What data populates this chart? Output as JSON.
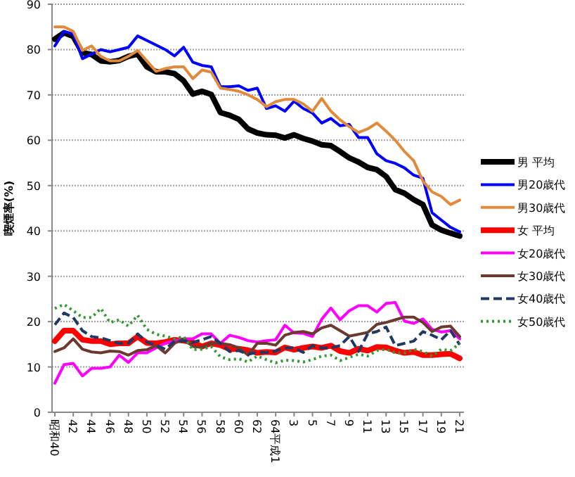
{
  "chart_data": {
    "type": "line",
    "ylabel": "喫煙率(%)",
    "categories": [
      "昭和40",
      null,
      "42",
      null,
      "44",
      null,
      "46",
      null,
      "48",
      null,
      "50",
      null,
      "52",
      null,
      "54",
      null,
      "56",
      null,
      "58",
      null,
      "60",
      null,
      "62",
      null,
      "64平成1",
      null,
      "3",
      null,
      "5",
      null,
      "7",
      null,
      "9",
      null,
      "11",
      null,
      "13",
      null,
      "15",
      null,
      "17",
      null,
      "19",
      null,
      "21"
    ],
    "ylim": [
      0,
      90
    ],
    "yticks": [
      0,
      10,
      20,
      30,
      40,
      50,
      60,
      70,
      80,
      90
    ],
    "grid": "y",
    "legend": "right",
    "marker": "none",
    "series": [
      {
        "name": "男  平均",
        "color": "#000000",
        "line_style": "solid",
        "values": [
          82.3,
          83.7,
          82.9,
          79.3,
          78.9,
          77.5,
          77.3,
          77.6,
          78.5,
          79.0,
          76.2,
          75.1,
          75.1,
          74.7,
          73.1,
          70.2,
          70.8,
          70.1,
          66.1,
          65.5,
          64.6,
          62.5,
          61.6,
          61.2,
          61.1,
          60.5,
          61.2,
          60.4,
          59.8,
          59.0,
          58.8,
          57.5,
          56.1,
          55.2,
          54.0,
          53.5,
          52.0,
          49.1,
          48.3,
          46.9,
          45.8,
          41.3,
          40.2,
          39.5,
          38.9
        ]
      },
      {
        "name": "男20歳代",
        "color": "#0000ff",
        "line_style": "solid",
        "values": [
          80.8,
          84,
          83.4,
          78,
          79,
          80,
          79.5,
          80,
          80.5,
          83,
          82,
          81,
          80,
          78.6,
          80.5,
          77.2,
          76.5,
          76.2,
          71.8,
          71.8,
          72,
          71,
          71.5,
          67,
          67.6,
          66.4,
          68.6,
          67,
          66,
          63.8,
          64.8,
          63.2,
          63.5,
          60.6,
          60.6,
          57,
          55.5,
          54.9,
          53.9,
          52.3,
          51.6,
          44,
          42.4,
          40.8,
          39.8
        ]
      },
      {
        "name": "男30歳代",
        "color": "#e08a3c",
        "line_style": "solid",
        "values": [
          85,
          85,
          84,
          79.8,
          80.8,
          78.5,
          77.5,
          77.5,
          78.5,
          79.8,
          77.5,
          75.2,
          75.8,
          76.2,
          76.2,
          73.6,
          75.5,
          75,
          71.5,
          71.2,
          70.8,
          70,
          69,
          67.4,
          68.5,
          69,
          69,
          68,
          66.4,
          69.2,
          66.4,
          64.5,
          63,
          61.7,
          62.5,
          63.8,
          62,
          60,
          57.5,
          55.5,
          51,
          48.6,
          47.6,
          45.8,
          46.8
        ]
      },
      {
        "name": "女  平均",
        "color": "#ff0000",
        "line_style": "solid",
        "values": [
          15.7,
          18,
          18,
          16,
          15.7,
          15.7,
          15,
          15.2,
          15.2,
          16.7,
          15.3,
          15.2,
          15.5,
          16,
          15.8,
          15.4,
          14.5,
          15.2,
          14.8,
          13.9,
          14,
          13.7,
          13.1,
          13.3,
          13.2,
          14.3,
          13.8,
          14.2,
          14.5,
          14.2,
          14.7,
          13.5,
          13.1,
          14,
          13.6,
          14.4,
          14.3,
          13.6,
          13.1,
          13.3,
          12.6,
          12.6,
          12.8,
          12.9,
          11.9
        ]
      },
      {
        "name": "女20歳代",
        "color": "#ff00ff",
        "line_style": "solid",
        "values": [
          6.4,
          10.5,
          10.8,
          8,
          9.7,
          9.7,
          10,
          12.6,
          11,
          13.1,
          13.1,
          14.2,
          15.2,
          15.7,
          16.2,
          16.2,
          17.3,
          17.3,
          15.2,
          17,
          16.5,
          15.8,
          15.5,
          15.8,
          16,
          19.2,
          17.5,
          17.4,
          16.7,
          20.5,
          23,
          20.4,
          22.4,
          23.5,
          23.5,
          22.1,
          24,
          24.2,
          20.1,
          19.6,
          20.6,
          18.3,
          17.7,
          18,
          16.2
        ]
      },
      {
        "name": "女30歳代",
        "color": "#6b3a2e",
        "line_style": "solid",
        "values": [
          13.4,
          14.2,
          16.2,
          13.9,
          13.3,
          13.1,
          13.5,
          13.4,
          12.6,
          13.6,
          13.8,
          14.7,
          13.1,
          15.2,
          16.2,
          14.5,
          14.3,
          15.3,
          15.2,
          14.9,
          14.2,
          12.6,
          15.2,
          15.2,
          14.8,
          17,
          17.6,
          17.8,
          17.3,
          18.6,
          19.2,
          18,
          16.8,
          17.2,
          17.6,
          19.4,
          19.8,
          20.4,
          21,
          21,
          19.8,
          17.8,
          18.8,
          19,
          16.7
        ]
      },
      {
        "name": "女40歳代",
        "color": "#1f3864",
        "line_style": "dashed",
        "values": [
          19.3,
          21.9,
          20.9,
          18,
          16.7,
          16.4,
          15.8,
          15.2,
          15.2,
          17.3,
          15.5,
          14.8,
          13.9,
          15.7,
          15.7,
          15.4,
          16,
          16.7,
          15.2,
          13.4,
          13.6,
          12.8,
          13.2,
          13.2,
          13.5,
          14.2,
          14.2,
          13.2,
          14.7,
          14.2,
          14.2,
          14.7,
          16.7,
          13.4,
          17.3,
          17.8,
          18.8,
          14.7,
          15.2,
          15.7,
          17.8,
          17,
          16,
          18,
          14.9
        ]
      },
      {
        "name": "女50歳代",
        "color": "#339933",
        "line_style": "dotted",
        "values": [
          22.9,
          23.8,
          22.4,
          20.9,
          20.9,
          22.9,
          19.8,
          20.4,
          19,
          21.4,
          18.3,
          17.2,
          16.8,
          16.2,
          16.7,
          13.8,
          13.9,
          14.5,
          12.2,
          11.6,
          11.8,
          11.1,
          12.4,
          11.6,
          10.9,
          11.5,
          11.4,
          11.1,
          11.6,
          12.4,
          12.6,
          11.4,
          12.1,
          12.8,
          12.4,
          13.6,
          13.9,
          13.1,
          13.1,
          13.9,
          13.4,
          12.4,
          13.9,
          13.6,
          15.2
        ]
      }
    ]
  }
}
